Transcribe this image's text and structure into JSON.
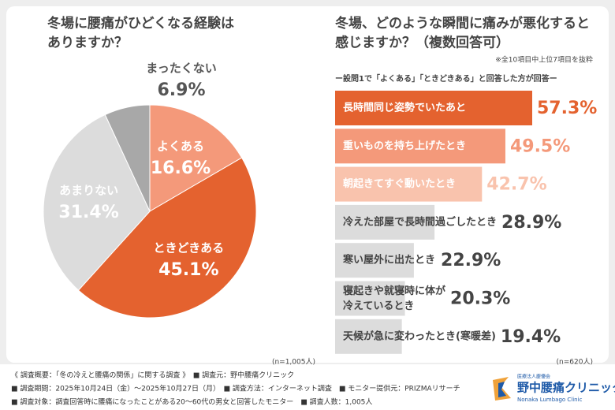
{
  "chart_data": [
    {
      "type": "pie",
      "title": "冬場に腰痛がひどくなる経験は\nありますか？",
      "categories": [
        "よくある",
        "ときどきある",
        "あまりない",
        "まったくない"
      ],
      "values": [
        16.6,
        45.1,
        31.4,
        6.9
      ],
      "value_labels": [
        "16.6%",
        "45.1%",
        "31.4%",
        "6.9%"
      ],
      "colors": [
        "#f4997a",
        "#e4622f",
        "#dcdcdc",
        "#a8a8a8"
      ],
      "sample": "(n=1,005人)"
    },
    {
      "type": "bar",
      "title": "冬場、どのような瞬間に痛みが悪化すると\n感じますか？（複数回答可）",
      "note": "※全10項目中上位7項目を抜粋",
      "subtitle": "ー設問1で「よくある」「ときどきある」と回答した方が回答ー",
      "categories": [
        "長時間同じ姿勢でいたあと",
        "重いものを持ち上げたとき",
        "朝起きてすぐ動いたとき",
        "冷えた部屋で長時間過ごしたとき",
        "寒い屋外に出たとき",
        "寝起きや就寝時に体が\n冷えているとき",
        "天候が急に変わったとき(寒暖差)"
      ],
      "values": [
        57.3,
        49.5,
        42.7,
        28.9,
        22.9,
        20.3,
        19.4
      ],
      "value_labels": [
        "57.3%",
        "49.5%",
        "42.7%",
        "28.9%",
        "22.9%",
        "20.3%",
        "19.4%"
      ],
      "colors": [
        "#e4622f",
        "#f4997a",
        "#f9c3ad",
        "#dcdcdc",
        "#dcdcdc",
        "#dcdcdc",
        "#dcdcdc"
      ],
      "sample": "(n=620人)"
    }
  ],
  "footer": {
    "lines": [
      "《 調査概要：「冬の冷えと腰痛の関係」に関する調査 》　■ 調査元：野中腰痛クリニック",
      "■ 調査期間：2025年10月24日（金）～2025年10月27日（月）　■ 調査方法：インターネット調査　■ モニター提供元：PRIZMAリサーチ",
      "■ 調査対象：調査回答時に腰痛になったことがある20～60代の男女と回答したモニター　■ 調査人数：1,005人"
    ],
    "logo_org": "医療法人慶優会",
    "logo_name": "野中腰痛クリニック",
    "logo_en": "Nonaka Lumbago Clinic"
  }
}
